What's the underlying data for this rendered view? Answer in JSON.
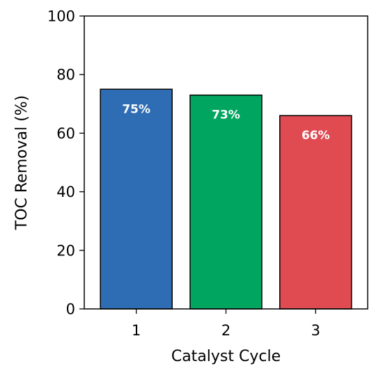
{
  "chart_data": {
    "type": "bar",
    "categories": [
      "1",
      "2",
      "3"
    ],
    "values": [
      75,
      73,
      66
    ],
    "bar_labels": [
      "75%",
      "73%",
      "66%"
    ],
    "colors": [
      "#2e6db4",
      "#00a660",
      "#e04b52"
    ],
    "label_color": "#ffffff",
    "edge_color": "#000000",
    "title": "",
    "xlabel": "Catalyst Cycle",
    "ylabel": "TOC Removal (%)",
    "ylim": [
      0,
      100
    ],
    "yticks": [
      "0",
      "20",
      "40",
      "60",
      "80",
      "100"
    ],
    "grid": false,
    "legend": "none"
  }
}
